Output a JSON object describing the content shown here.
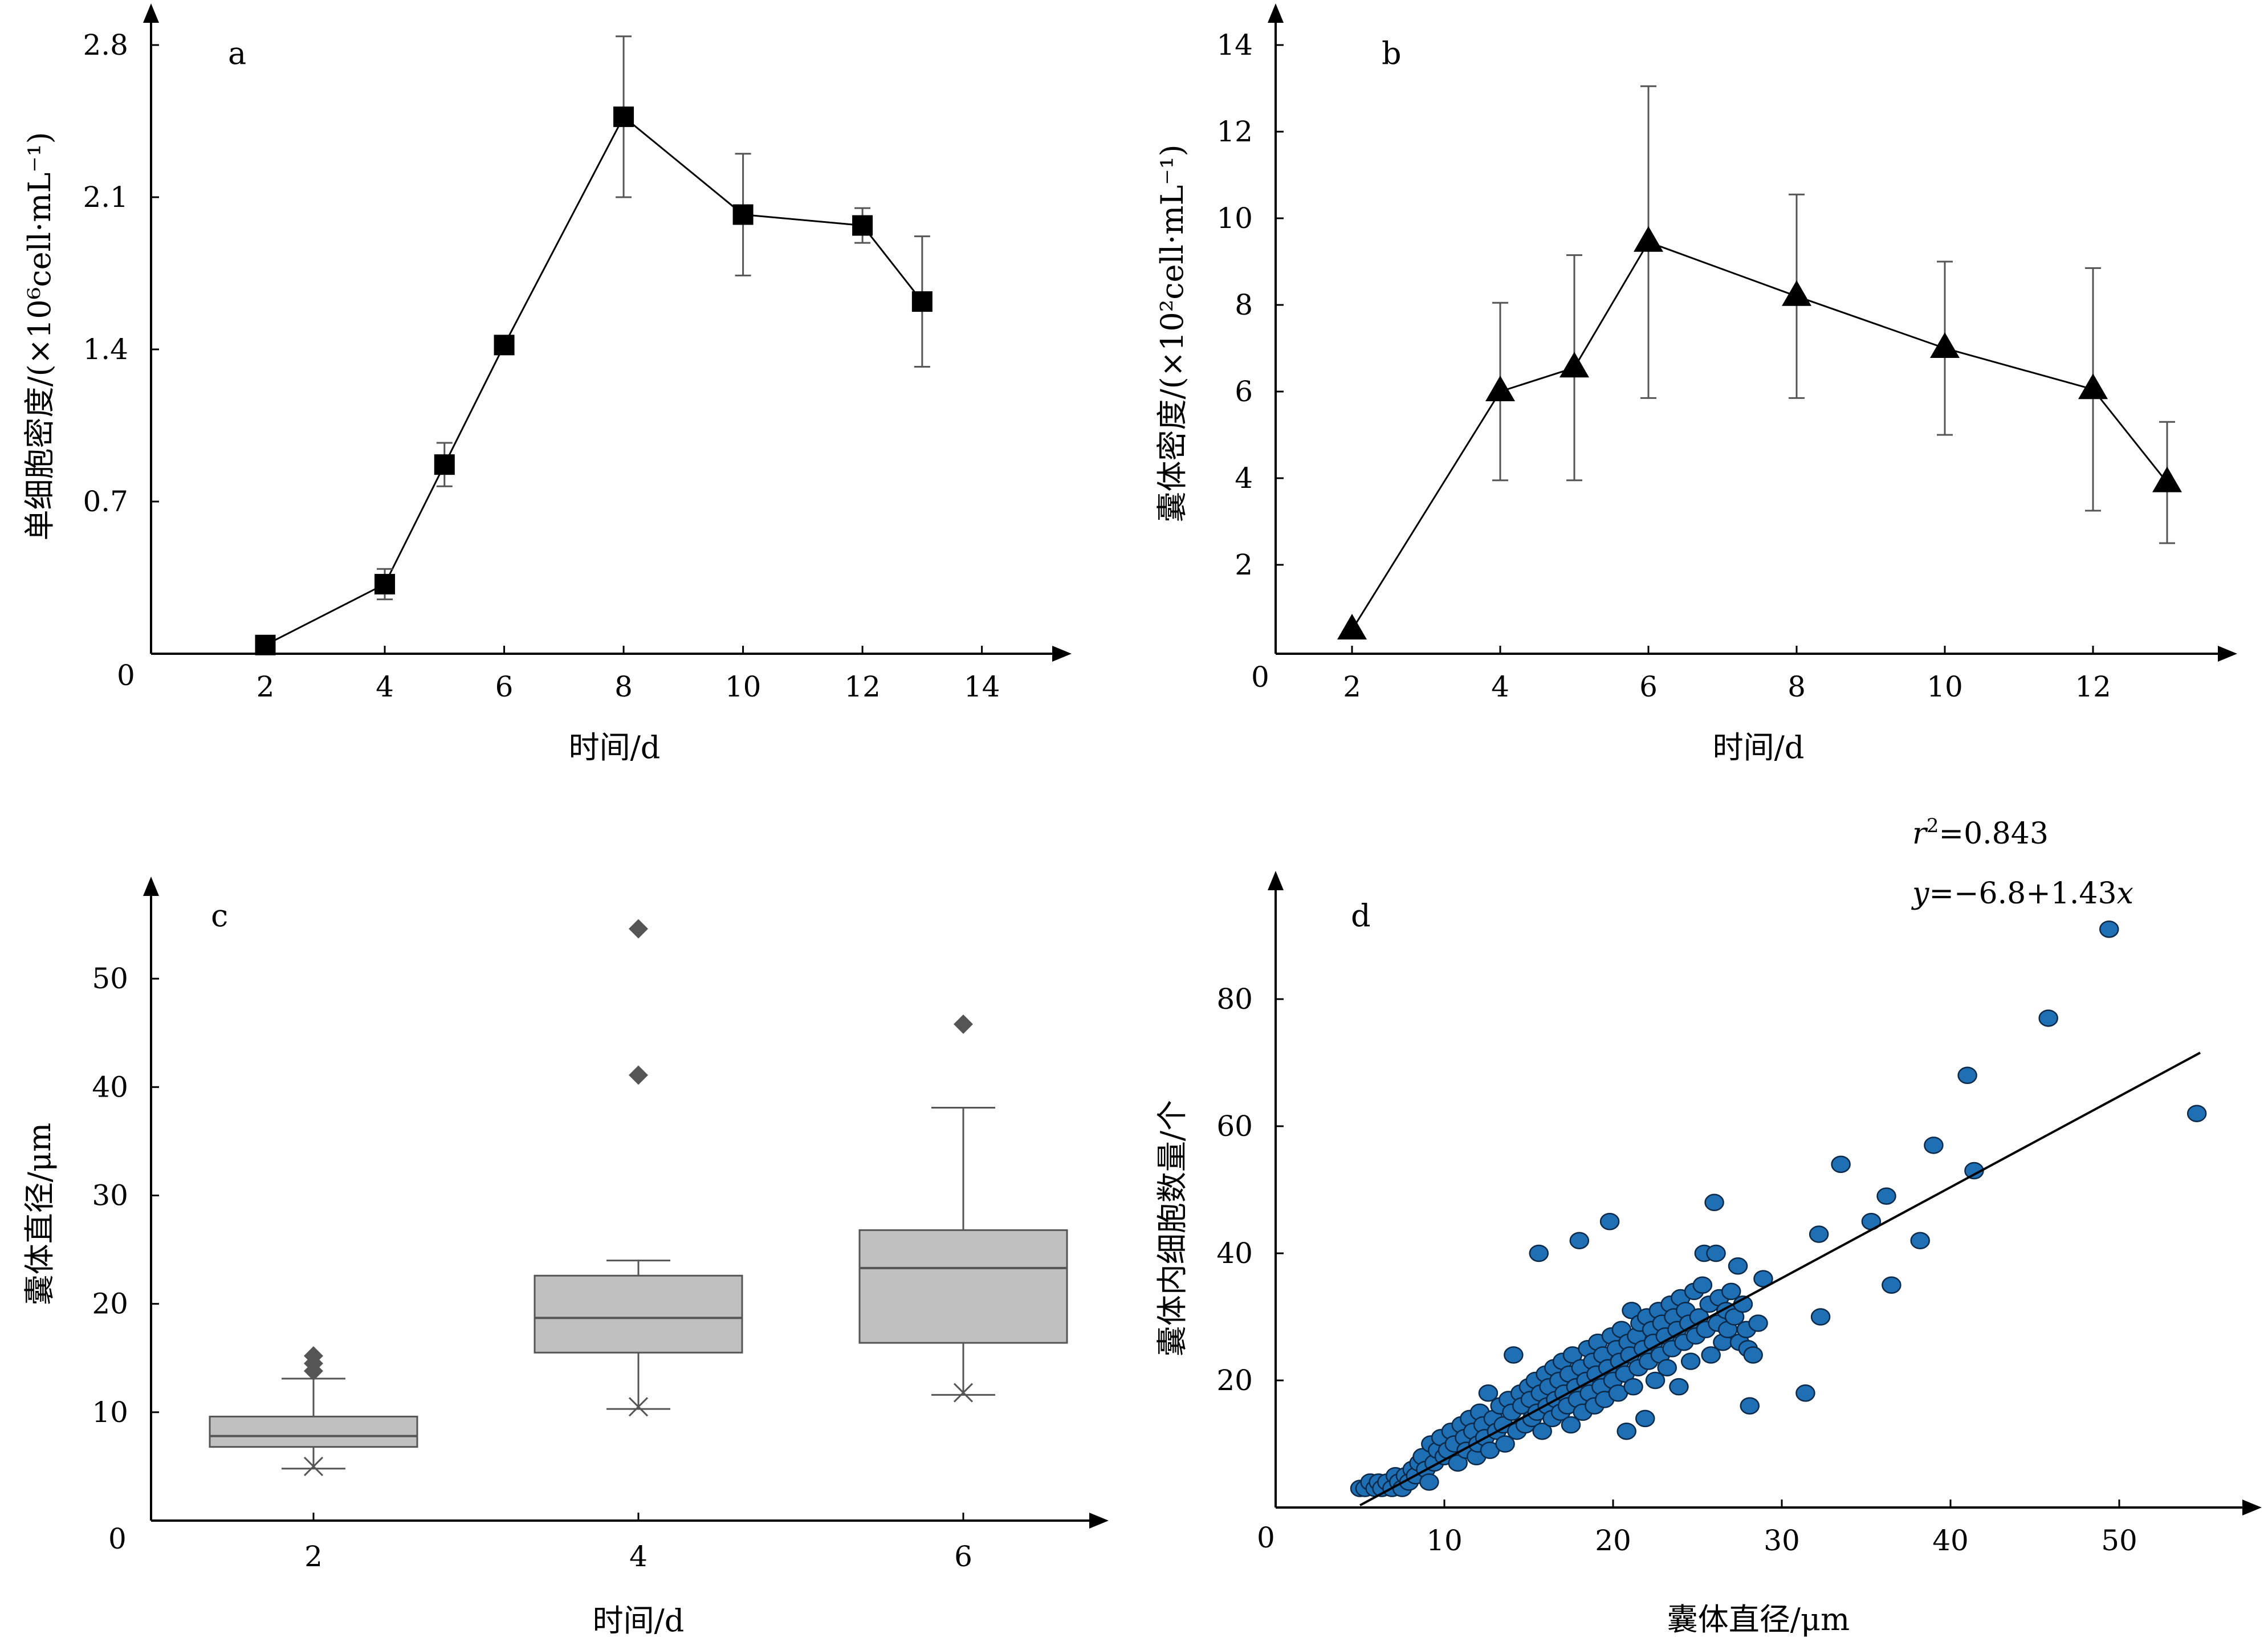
{
  "chart_data": [
    {
      "panel": "a",
      "type": "line",
      "xlabel": "时间/d",
      "ylabel": "单细胞密度/(×10⁶cell·mL⁻¹)",
      "origin_label": "0",
      "xlim": [
        0,
        14.5
      ],
      "ylim": [
        0,
        2.8
      ],
      "xticks": [
        2,
        4,
        6,
        8,
        10,
        12,
        14
      ],
      "yticks": [
        0.7,
        1.4,
        2.1,
        2.8
      ],
      "marker": "square",
      "points": [
        {
          "x": 2,
          "y": 0.04,
          "err": 0
        },
        {
          "x": 4,
          "y": 0.32,
          "err": 0.07
        },
        {
          "x": 5,
          "y": 0.87,
          "err": 0.1
        },
        {
          "x": 6,
          "y": 1.42,
          "err": 0
        },
        {
          "x": 8,
          "y": 2.47,
          "err": 0.37
        },
        {
          "x": 10,
          "y": 2.02,
          "err": 0.28
        },
        {
          "x": 12,
          "y": 1.97,
          "err": 0.08
        },
        {
          "x": 13,
          "y": 1.62,
          "err": 0.3
        }
      ]
    },
    {
      "panel": "b",
      "type": "line",
      "xlabel": "时间/d",
      "ylabel": "囊体密度/(×10²cell·mL⁻¹)",
      "origin_label": "0",
      "xlim": [
        0,
        14
      ],
      "ylim": [
        0,
        14
      ],
      "xticks": [
        2,
        4,
        6,
        8,
        10,
        12
      ],
      "yticks": [
        2,
        4,
        6,
        8,
        10,
        12,
        14
      ],
      "marker": "triangle",
      "points": [
        {
          "x": 2,
          "y": 0.5,
          "err": 0
        },
        {
          "x": 4,
          "y": 6.0,
          "err": 2.05
        },
        {
          "x": 5,
          "y": 6.55,
          "err": 2.6
        },
        {
          "x": 6,
          "y": 9.45,
          "err": 3.6
        },
        {
          "x": 8,
          "y": 8.2,
          "err": 2.35
        },
        {
          "x": 10,
          "y": 7.0,
          "err": 2.0
        },
        {
          "x": 12,
          "y": 6.05,
          "err": 2.8
        },
        {
          "x": 13,
          "y": 3.9,
          "err": 1.4
        }
      ]
    },
    {
      "panel": "c",
      "type": "box",
      "xlabel": "时间/d",
      "ylabel": "囊体直径/μm",
      "origin_label": "0",
      "ylim": [
        0,
        58
      ],
      "yticks": [
        10,
        20,
        30,
        40,
        50
      ],
      "boxes": [
        {
          "label": "2",
          "min": 4.8,
          "q1": 6.8,
          "median": 7.8,
          "q3": 9.6,
          "max": 13.1,
          "mean": 5.0,
          "outliers": [
            13.8,
            14.5,
            15.2
          ]
        },
        {
          "label": "4",
          "min": 10.3,
          "q1": 15.5,
          "median": 18.7,
          "q3": 22.6,
          "max": 24.0,
          "mean": 10.5,
          "outliers": [
            41.1,
            54.6
          ]
        },
        {
          "label": "6",
          "min": 11.6,
          "q1": 16.4,
          "median": 23.3,
          "q3": 26.8,
          "max": 38.1,
          "mean": 11.8,
          "outliers": [
            45.8
          ]
        }
      ]
    },
    {
      "panel": "d",
      "type": "scatter",
      "xlabel": "囊体直径/μm",
      "ylabel": "囊体内细胞数量/个",
      "origin_label": "0",
      "xlim": [
        0,
        58
      ],
      "ylim": [
        0,
        97
      ],
      "xticks": [
        10,
        20,
        30,
        40,
        50
      ],
      "yticks": [
        20,
        40,
        60,
        80
      ],
      "eq_r2_base": "r",
      "eq_r2_exp": "2",
      "eq_r2_val": "=0.843",
      "eq_y": "y",
      "eq_body": "=−6.8+1.43",
      "eq_x": "x",
      "fit": {
        "intercept": -6.8,
        "slope": 1.43,
        "x_range": [
          5,
          54.8
        ]
      },
      "marker_color": "#1f6fb5",
      "points": [
        [
          5.0,
          3
        ],
        [
          5.3,
          3
        ],
        [
          5.6,
          4
        ],
        [
          5.9,
          3
        ],
        [
          6.1,
          4
        ],
        [
          6.3,
          3
        ],
        [
          6.6,
          4
        ],
        [
          6.9,
          3
        ],
        [
          7.1,
          5
        ],
        [
          7.3,
          4
        ],
        [
          7.5,
          3
        ],
        [
          7.7,
          5
        ],
        [
          7.9,
          4
        ],
        [
          8.1,
          6
        ],
        [
          8.3,
          5
        ],
        [
          8.5,
          7
        ],
        [
          8.7,
          8
        ],
        [
          8.9,
          6
        ],
        [
          9.1,
          4
        ],
        [
          9.2,
          10
        ],
        [
          9.4,
          7
        ],
        [
          9.6,
          9
        ],
        [
          9.8,
          11
        ],
        [
          10.0,
          8
        ],
        [
          10.2,
          9
        ],
        [
          10.4,
          12
        ],
        [
          10.6,
          10
        ],
        [
          10.8,
          7
        ],
        [
          11.0,
          13
        ],
        [
          11.2,
          11
        ],
        [
          11.3,
          9
        ],
        [
          11.5,
          14
        ],
        [
          11.7,
          12
        ],
        [
          11.9,
          8
        ],
        [
          12.0,
          10
        ],
        [
          12.1,
          15
        ],
        [
          12.3,
          13
        ],
        [
          12.4,
          11
        ],
        [
          12.6,
          18
        ],
        [
          12.7,
          9
        ],
        [
          12.9,
          14
        ],
        [
          13.1,
          12
        ],
        [
          13.3,
          16
        ],
        [
          13.5,
          13
        ],
        [
          13.6,
          10
        ],
        [
          13.8,
          17
        ],
        [
          14.0,
          15
        ],
        [
          14.1,
          24
        ],
        [
          14.3,
          12
        ],
        [
          14.5,
          18
        ],
        [
          14.6,
          16
        ],
        [
          14.8,
          13
        ],
        [
          15.0,
          19
        ],
        [
          15.1,
          17
        ],
        [
          15.2,
          14
        ],
        [
          15.4,
          20
        ],
        [
          15.5,
          15
        ],
        [
          15.6,
          40
        ],
        [
          15.7,
          18
        ],
        [
          15.8,
          12
        ],
        [
          16.0,
          21
        ],
        [
          16.1,
          16
        ],
        [
          16.2,
          19
        ],
        [
          16.4,
          14
        ],
        [
          16.5,
          22
        ],
        [
          16.6,
          17
        ],
        [
          16.8,
          20
        ],
        [
          16.9,
          15
        ],
        [
          17.0,
          23
        ],
        [
          17.1,
          18
        ],
        [
          17.3,
          16
        ],
        [
          17.4,
          21
        ],
        [
          17.5,
          13
        ],
        [
          17.6,
          24
        ],
        [
          17.8,
          19
        ],
        [
          17.9,
          17
        ],
        [
          18.0,
          42
        ],
        [
          18.1,
          22
        ],
        [
          18.2,
          15
        ],
        [
          18.4,
          20
        ],
        [
          18.5,
          25
        ],
        [
          18.6,
          18
        ],
        [
          18.8,
          23
        ],
        [
          18.9,
          16
        ],
        [
          19.0,
          21
        ],
        [
          19.1,
          26
        ],
        [
          19.3,
          19
        ],
        [
          19.4,
          24
        ],
        [
          19.5,
          17
        ],
        [
          19.7,
          22
        ],
        [
          19.8,
          45
        ],
        [
          19.9,
          27
        ],
        [
          20.0,
          20
        ],
        [
          20.2,
          25
        ],
        [
          20.3,
          18
        ],
        [
          20.4,
          23
        ],
        [
          20.5,
          28
        ],
        [
          20.7,
          21
        ],
        [
          20.8,
          12
        ],
        [
          20.9,
          26
        ],
        [
          21.0,
          24
        ],
        [
          21.1,
          31
        ],
        [
          21.2,
          19
        ],
        [
          21.4,
          27
        ],
        [
          21.5,
          22
        ],
        [
          21.6,
          29
        ],
        [
          21.8,
          25
        ],
        [
          21.9,
          14
        ],
        [
          22.0,
          30
        ],
        [
          22.1,
          23
        ],
        [
          22.3,
          28
        ],
        [
          22.4,
          26
        ],
        [
          22.5,
          20
        ],
        [
          22.7,
          31
        ],
        [
          22.8,
          24
        ],
        [
          22.9,
          29
        ],
        [
          23.1,
          27
        ],
        [
          23.2,
          22
        ],
        [
          23.4,
          32
        ],
        [
          23.5,
          25
        ],
        [
          23.6,
          30
        ],
        [
          23.8,
          28
        ],
        [
          23.9,
          19
        ],
        [
          24.0,
          33
        ],
        [
          24.2,
          26
        ],
        [
          24.3,
          31
        ],
        [
          24.5,
          29
        ],
        [
          24.6,
          23
        ],
        [
          24.8,
          34
        ],
        [
          24.9,
          27
        ],
        [
          25.1,
          30
        ],
        [
          25.3,
          35
        ],
        [
          25.4,
          40
        ],
        [
          25.5,
          28
        ],
        [
          25.7,
          32
        ],
        [
          25.8,
          24
        ],
        [
          26.0,
          48
        ],
        [
          26.1,
          40
        ],
        [
          26.2,
          29
        ],
        [
          26.3,
          33
        ],
        [
          26.5,
          26
        ],
        [
          26.7,
          31
        ],
        [
          26.8,
          28
        ],
        [
          27.0,
          34
        ],
        [
          27.2,
          30
        ],
        [
          27.4,
          38
        ],
        [
          27.5,
          26
        ],
        [
          27.7,
          32
        ],
        [
          27.9,
          28
        ],
        [
          28.0,
          25
        ],
        [
          28.1,
          16
        ],
        [
          28.3,
          24
        ],
        [
          28.6,
          29
        ],
        [
          28.9,
          36
        ],
        [
          31.4,
          18
        ],
        [
          32.2,
          43
        ],
        [
          32.3,
          30
        ],
        [
          33.5,
          54
        ],
        [
          35.3,
          45
        ],
        [
          36.2,
          49
        ],
        [
          36.5,
          35
        ],
        [
          38.2,
          42
        ],
        [
          39.0,
          57
        ],
        [
          41.0,
          68
        ],
        [
          41.4,
          53
        ],
        [
          45.8,
          77
        ],
        [
          49.4,
          91
        ],
        [
          54.6,
          62
        ]
      ]
    }
  ]
}
